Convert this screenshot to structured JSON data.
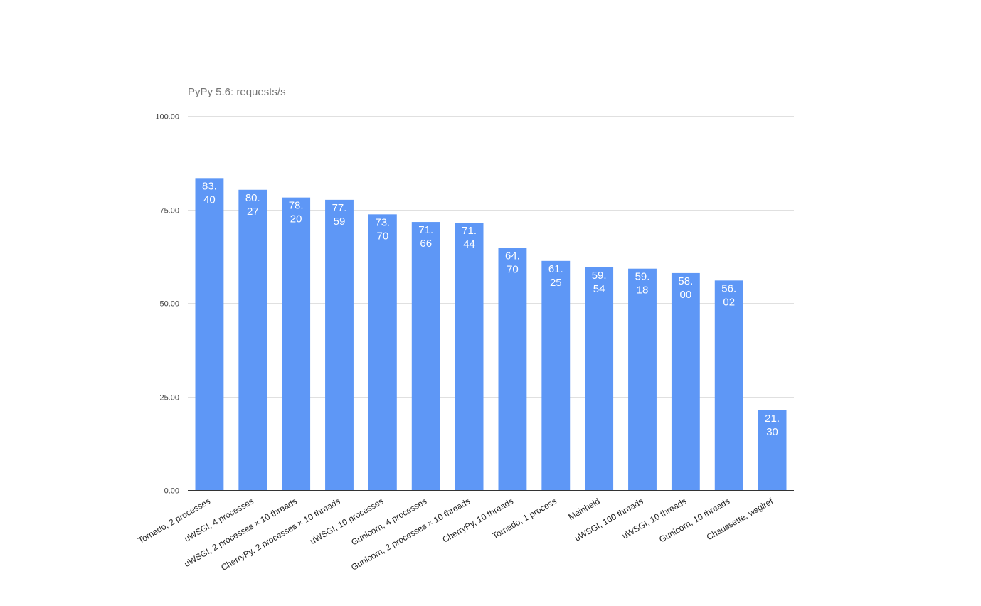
{
  "chart_data": {
    "type": "bar",
    "title": "PyPy 5.6: requests/s",
    "xlabel": "",
    "ylabel": "",
    "ylim": [
      0,
      100
    ],
    "yticks": [
      "0.00",
      "25.00",
      "50.00",
      "75.00",
      "100.00"
    ],
    "grid": true,
    "legend": "none",
    "bar_color": "#5e97f6",
    "categories": [
      "Tornado, 2 processes",
      "uWSGI, 4 processes",
      "uWSGI, 2 processes × 10 threads",
      "CherryPy, 2 processes × 10 threads",
      "uWSGI, 10 processes",
      "Gunicorn, 4 processes",
      "Gunicorn, 2 processes × 10 threads",
      "CherryPy, 10 threads",
      "Tornado, 1 process",
      "Meinheld",
      "uWSGI, 100 threads",
      "uWSGI, 10 threads",
      "Gunicorn, 10 threads",
      "Chaussette, wsgiref"
    ],
    "values": [
      83.4,
      80.27,
      78.2,
      77.59,
      73.7,
      71.66,
      71.44,
      64.7,
      61.25,
      59.54,
      59.18,
      58.0,
      56.02,
      21.3
    ],
    "data_labels": [
      "83.40",
      "80.27",
      "78.20",
      "77.59",
      "73.70",
      "71.66",
      "71.44",
      "64.70",
      "61.25",
      "59.54",
      "59.18",
      "58.00",
      "56.02",
      "21.30"
    ]
  }
}
